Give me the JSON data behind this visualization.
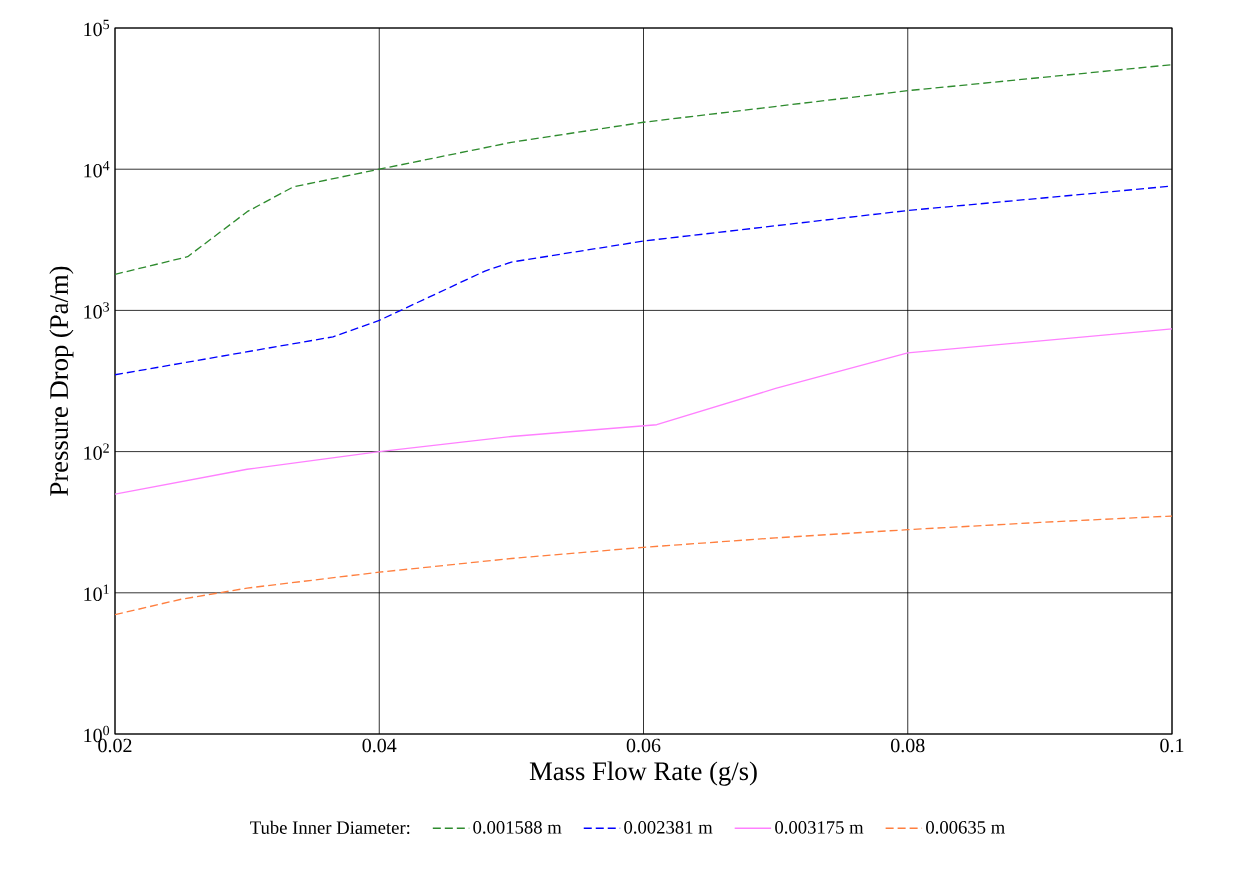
{
  "chart_data": {
    "type": "line",
    "xlabel": "Mass Flow Rate (g/s)",
    "ylabel": "Pressure Drop (Pa/m)",
    "legend_title": "Tube Inner Diameter:",
    "log": "y",
    "grid": true,
    "legend": "bottom",
    "marker": "none",
    "xlim": [
      0.02,
      0.1
    ],
    "xticks": [
      0.02,
      0.04,
      0.06,
      0.08,
      0.1
    ],
    "ylim": [
      1,
      100000
    ],
    "yticks": [
      {
        "value": 1,
        "label": "10$^{0}$"
      },
      {
        "value": 10,
        "label": "10$^{1}$"
      },
      {
        "value": 100,
        "label": "10$^{2}$"
      },
      {
        "value": 1000,
        "label": "10$^{3}$"
      },
      {
        "value": 10000,
        "label": "10$^{4}$"
      },
      {
        "value": 100000,
        "label": "10$^{5}$"
      }
    ],
    "series": [
      {
        "name": "0.001588 m",
        "color": "#2e8b2e",
        "line_style": "dashed",
        "x": [
          0.02,
          0.0255,
          0.03,
          0.0335,
          0.04,
          0.05,
          0.06,
          0.08,
          0.1
        ],
        "values": [
          1800,
          2400,
          5000,
          7500,
          10000,
          15500,
          21500,
          36000,
          55000
        ]
      },
      {
        "name": "0.002381 m",
        "color": "#0000ff",
        "line_style": "dashed",
        "x": [
          0.02,
          0.0365,
          0.04,
          0.048,
          0.05,
          0.06,
          0.08,
          0.1
        ],
        "values": [
          350,
          650,
          850,
          1900,
          2200,
          3100,
          5100,
          7600
        ]
      },
      {
        "name": "0.003175 m",
        "color": "#ff80ff",
        "line_style": "solid",
        "x": [
          0.02,
          0.03,
          0.04,
          0.05,
          0.061,
          0.07,
          0.08,
          0.1
        ],
        "values": [
          50,
          75,
          100,
          128,
          155,
          280,
          500,
          740
        ]
      },
      {
        "name": "0.00635 m",
        "color": "#ff7f3f",
        "line_style": "dashed",
        "x": [
          0.02,
          0.025,
          0.03,
          0.04,
          0.05,
          0.06,
          0.07,
          0.08,
          0.09,
          0.1
        ],
        "values": [
          7,
          9,
          10.8,
          14,
          17.5,
          21,
          24.5,
          28,
          31.5,
          35
        ]
      }
    ]
  }
}
